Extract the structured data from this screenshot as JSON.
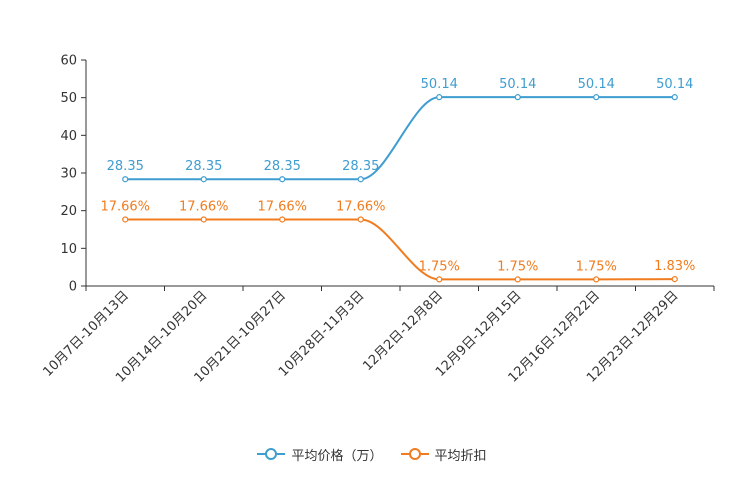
{
  "chart_data": {
    "type": "line",
    "title": "",
    "xlabel": "",
    "ylabel": "",
    "categories": [
      "10月7日-10月13日",
      "10月14日-10月20日",
      "10月21日-10月27日",
      "10月28日-11月3日",
      "12月2日-12月8日",
      "12月9日-12月15日",
      "12月16日-12月22日",
      "12月23日-12月29日"
    ],
    "ylim": [
      0,
      60
    ],
    "yticks": [
      0,
      10,
      20,
      30,
      40,
      50,
      60
    ],
    "grid": false,
    "legend_position": "bottom",
    "series": [
      {
        "name": "平均价格（万）",
        "color": "#3f9dd0",
        "values": [
          28.35,
          28.35,
          28.35,
          28.35,
          50.14,
          50.14,
          50.14,
          50.14
        ],
        "labels": [
          "28.35",
          "28.35",
          "28.35",
          "28.35",
          "50.14",
          "50.14",
          "50.14",
          "50.14"
        ]
      },
      {
        "name": "平均折扣",
        "color": "#f07c1f",
        "values": [
          17.66,
          17.66,
          17.66,
          17.66,
          1.75,
          1.75,
          1.75,
          1.83
        ],
        "labels": [
          "17.66%",
          "17.66%",
          "17.66%",
          "17.66%",
          "1.75%",
          "1.75%",
          "1.75%",
          "1.83%"
        ]
      }
    ]
  }
}
